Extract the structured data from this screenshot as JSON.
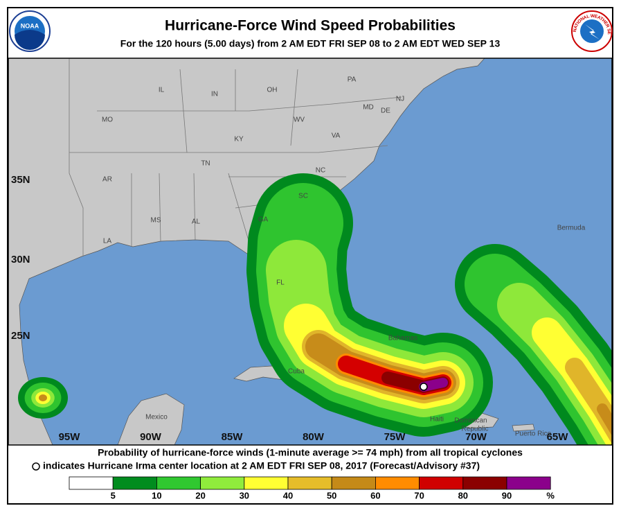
{
  "header": {
    "title": "Hurricane-Force Wind Speed Probabilities",
    "subtitle": "For the 120 hours (5.00 days) from 2 AM EDT FRI SEP 08 to 2 AM EDT WED SEP 13",
    "noaa_logo": "NOAA",
    "nws_logo": "NATIONAL WEATHER SERVICE"
  },
  "map": {
    "lat_labels": [
      "35N",
      "30N",
      "25N"
    ],
    "lon_labels": [
      "95W",
      "90W",
      "85W",
      "80W",
      "75W",
      "70W",
      "65W"
    ],
    "place_labels": [
      "IL",
      "IN",
      "OH",
      "PA",
      "MO",
      "KY",
      "WV",
      "VA",
      "MD",
      "DE",
      "NJ",
      "TN",
      "NC",
      "AR",
      "SC",
      "MS",
      "AL",
      "GA",
      "LA",
      "FL",
      "Bermuda",
      "Bahamas",
      "Cuba",
      "Mexico",
      "Haiti",
      "Dominican",
      "Republic",
      "Puerto Rico"
    ]
  },
  "footer": {
    "line1": "Probability of hurricane-force winds (1-minute average >= 74 mph) from all tropical cyclones",
    "line2": "indicates Hurricane Irma center location at 2 AM EDT FRI SEP 08, 2017 (Forecast/Advisory #37)"
  },
  "legend": {
    "labels": [
      "5",
      "10",
      "20",
      "30",
      "40",
      "50",
      "60",
      "70",
      "80",
      "90",
      "%"
    ]
  }
}
